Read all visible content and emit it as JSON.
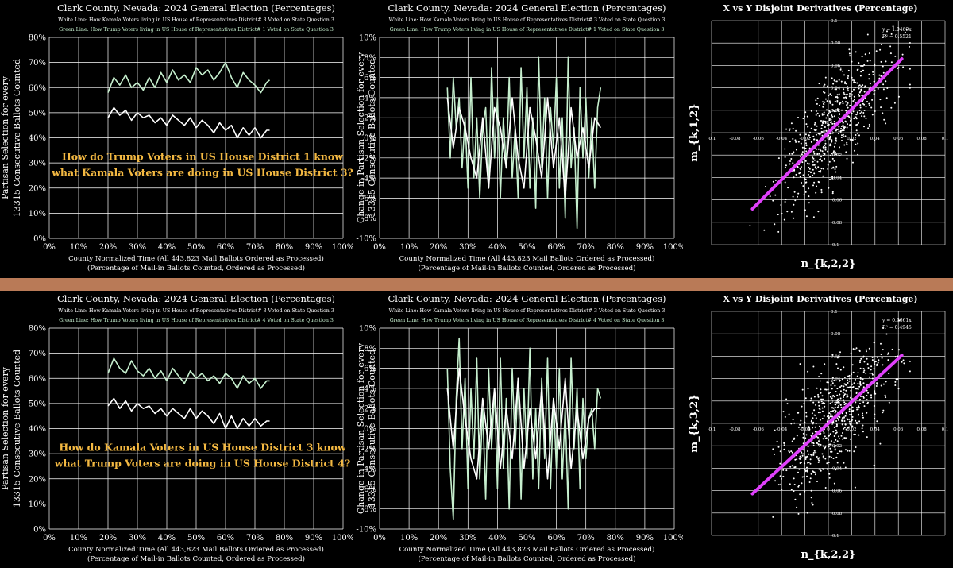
{
  "divider_color": "#b97a57",
  "colors": {
    "white_line": "#ffffff",
    "green_line": "#c6efce",
    "fit_line": "#e040fb",
    "question": "#f4b942",
    "grid": "#ffffff"
  },
  "rows": [
    {
      "time_chart": {
        "title": "Clark County, Nevada: 2024 General Election (Percentages)",
        "legend_white": "White Line: How Kamala Voters living in US House of Representatives District# 3 Voted on State Question 3",
        "legend_green": "Green Line: How Trump Voters living in US House of Representatives District# 1 Voted on State Question 3",
        "ylabel_1": "Partisan Selection for every",
        "ylabel_2": "13315 Consecutive Ballots Counted",
        "xlabel_1": "County Normalized Time (All 443,823 Mail Ballots Ordered as Processed)",
        "xlabel_2": "(Percentage of Mail-in Ballots Counted, Ordered as Processed)",
        "question_1": "How do Trump Voters in US House District 1 know",
        "question_2": "what Kamala Voters are doing in US House District 3?",
        "ylim": [
          0,
          80
        ],
        "xlim": [
          0,
          100
        ],
        "yticks": [
          "0%",
          "10%",
          "20%",
          "30%",
          "40%",
          "50%",
          "60%",
          "70%",
          "80%"
        ],
        "xticks": [
          "0%",
          "10%",
          "20%",
          "30%",
          "40%",
          "50%",
          "60%",
          "70%",
          "80%",
          "90%",
          "100%"
        ],
        "white_series": {
          "x": [
            20,
            22,
            24,
            26,
            28,
            30,
            32,
            34,
            36,
            38,
            40,
            42,
            44,
            46,
            48,
            50,
            52,
            54,
            56,
            58,
            60,
            62,
            64,
            66,
            68,
            70,
            72,
            74,
            75
          ],
          "y": [
            48,
            52,
            49,
            51,
            47,
            50,
            48,
            49,
            46,
            48,
            45,
            49,
            47,
            45,
            48,
            44,
            47,
            45,
            42,
            46,
            43,
            45,
            40,
            44,
            41,
            44,
            40,
            43,
            43
          ]
        },
        "green_series": {
          "x": [
            20,
            22,
            24,
            26,
            28,
            30,
            32,
            34,
            36,
            38,
            40,
            42,
            44,
            46,
            48,
            50,
            52,
            54,
            56,
            58,
            60,
            62,
            64,
            66,
            68,
            70,
            72,
            74,
            75
          ],
          "y": [
            58,
            64,
            61,
            65,
            60,
            62,
            59,
            64,
            60,
            66,
            62,
            67,
            63,
            65,
            62,
            68,
            65,
            67,
            63,
            66,
            70,
            64,
            60,
            66,
            63,
            61,
            58,
            62,
            63
          ]
        }
      },
      "change_chart": {
        "title": "Clark County, Nevada: 2024 General Election (Percentages)",
        "legend_white": "White Line: How Kamala Voters living in US House of Representatives District# 3 Voted on State Question 3",
        "legend_green": "Green Line: How Trump Voters living in US House of Representatives District# 1 Voted on State Question 3",
        "ylabel_1": "Change in Partisan Selection for every",
        "ylabel_2": "13315 Consecutive Ballots Counted",
        "xlabel_1": "County Normalized Time (All 443,823 Mail Ballots Ordered as Processed)",
        "xlabel_2": "(Percentage of Mail-in Ballots Counted, Ordered as Processed)",
        "ylim": [
          -10,
          10
        ],
        "xlim": [
          0,
          100
        ],
        "yticks": [
          "-10%",
          "-8%",
          "-6%",
          "-4%",
          "-2%",
          "0%",
          "2%",
          "4%",
          "6%",
          "8%",
          "10%"
        ],
        "xticks": [
          "0%",
          "10%",
          "20%",
          "30%",
          "40%",
          "50%",
          "60%",
          "70%",
          "80%",
          "90%",
          "100%"
        ],
        "white_series": {
          "x": [
            23,
            25,
            27,
            29,
            31,
            33,
            35,
            37,
            39,
            41,
            43,
            45,
            47,
            49,
            51,
            53,
            55,
            57,
            59,
            61,
            63,
            65,
            67,
            69,
            71,
            73,
            75
          ],
          "y": [
            4,
            -1,
            3,
            1,
            -2,
            -4,
            2,
            -5,
            3,
            1,
            -3,
            4,
            -2,
            -5,
            3,
            0,
            -4,
            4,
            -3,
            2,
            -6,
            3,
            -2,
            1,
            -3,
            2,
            1
          ]
        },
        "green_series": {
          "x": [
            23,
            24,
            25,
            26,
            27,
            28,
            29,
            30,
            31,
            32,
            33,
            34,
            35,
            36,
            37,
            38,
            39,
            40,
            41,
            42,
            43,
            44,
            45,
            46,
            47,
            48,
            49,
            50,
            51,
            52,
            53,
            54,
            55,
            56,
            57,
            58,
            59,
            60,
            61,
            62,
            63,
            64,
            65,
            66,
            67,
            68,
            69,
            70,
            71,
            72,
            73,
            74,
            75
          ],
          "y": [
            5,
            -2,
            6,
            1,
            4,
            -3,
            2,
            -5,
            6,
            -4,
            2,
            -6,
            1,
            3,
            -5,
            7,
            -2,
            4,
            -6,
            2,
            -3,
            6,
            -4,
            1,
            -6,
            7,
            -2,
            5,
            -5,
            2,
            -7,
            8,
            -3,
            4,
            -6,
            3,
            -1,
            6,
            -5,
            2,
            -8,
            8,
            -3,
            1,
            -9,
            5,
            -2,
            4,
            -4,
            2,
            -5,
            3,
            5
          ]
        }
      },
      "scatter": {
        "title": "X vs Y Disjoint Derivatives (Percentage)",
        "xlabel": "n_{k,2,2}",
        "ylabel": "m_{k,1,2}",
        "equation": "y = 1.0469x",
        "r2": "R² = 0.5521",
        "slope": 1.0469,
        "lim": [
          -0.1,
          0.1
        ],
        "ticks_x": [
          "-0.1",
          "-0.08",
          "-0.06",
          "-0.04",
          "-0.02",
          "0",
          "0.02",
          "0.04",
          "0.06",
          "0.08",
          "0.1"
        ],
        "ticks_y": [
          "0.1",
          "0.08",
          "0.06",
          "0.04",
          "0.02",
          "0",
          "-0.02",
          "-0.04",
          "-0.06",
          "-0.08",
          "-0.1"
        ],
        "fit_x_range": [
          -0.065,
          0.063
        ],
        "point_count": 650,
        "noise": 0.022,
        "seed": 7
      }
    },
    {
      "time_chart": {
        "title": "Clark County, Nevada: 2024 General Election (Percentages)",
        "legend_white": "White Line: How Kamala Voters living in US House of Representatives District# 3 Voted on State Question 3",
        "legend_green": "Green Line: How Trump Voters living in US House of Representatives District# 4 Voted on State Question 3",
        "ylabel_1": "Partisan Selection for every",
        "ylabel_2": "13315 Consecutive Ballots Counted",
        "xlabel_1": "County Normalized Time (All 443,823 Mail Ballots Ordered as Processed)",
        "xlabel_2": "(Percentage of Mail-in Ballots Counted, Ordered as Processed)",
        "question_1": "How do Kamala Voters in US House District 3 know",
        "question_2": "what Trump Voters are doing in US House District 4?",
        "ylim": [
          0,
          80
        ],
        "xlim": [
          0,
          100
        ],
        "yticks": [
          "0%",
          "10%",
          "20%",
          "30%",
          "40%",
          "50%",
          "60%",
          "70%",
          "80%"
        ],
        "xticks": [
          "0%",
          "10%",
          "20%",
          "30%",
          "40%",
          "50%",
          "60%",
          "70%",
          "80%",
          "90%",
          "100%"
        ],
        "white_series": {
          "x": [
            20,
            22,
            24,
            26,
            28,
            30,
            32,
            34,
            36,
            38,
            40,
            42,
            44,
            46,
            48,
            50,
            52,
            54,
            56,
            58,
            60,
            62,
            64,
            66,
            68,
            70,
            72,
            74,
            75
          ],
          "y": [
            49,
            52,
            48,
            51,
            47,
            50,
            48,
            49,
            46,
            48,
            45,
            48,
            46,
            44,
            48,
            44,
            47,
            45,
            42,
            46,
            40,
            45,
            40,
            44,
            41,
            44,
            41,
            43,
            43
          ]
        },
        "green_series": {
          "x": [
            20,
            22,
            24,
            26,
            28,
            30,
            32,
            34,
            36,
            38,
            40,
            42,
            44,
            46,
            48,
            50,
            52,
            54,
            56,
            58,
            60,
            62,
            64,
            66,
            68,
            70,
            72,
            74,
            75
          ],
          "y": [
            62,
            68,
            64,
            62,
            67,
            63,
            61,
            64,
            60,
            63,
            59,
            64,
            61,
            58,
            63,
            60,
            62,
            59,
            61,
            58,
            62,
            60,
            56,
            61,
            58,
            60,
            56,
            59,
            59
          ]
        }
      },
      "change_chart": {
        "title": "Clark County, Nevada: 2024 General Election (Percentages)",
        "legend_white": "White Line: How Kamala Voters living in US House of Representatives District# 3 Voted on State Question 3",
        "legend_green": "Green Line: How Trump Voters living in US House of Representatives District# 4 Voted on State Question 3",
        "ylabel_1": "Change in Partisan Selection for every",
        "ylabel_2": "13315 Consecutive Ballots Counted",
        "xlabel_1": "County Normalized Time (All 443,823 Mail Ballots Ordered as Processed)",
        "xlabel_2": "(Percentage of Mail-in Ballots Counted, Ordered as Processed)",
        "ylim": [
          -10,
          10
        ],
        "xlim": [
          0,
          100
        ],
        "yticks": [
          "-10%",
          "-8%",
          "-6%",
          "-4%",
          "-2%",
          "0%",
          "2%",
          "4%",
          "6%",
          "8%",
          "10%"
        ],
        "xticks": [
          "0%",
          "10%",
          "20%",
          "30%",
          "40%",
          "50%",
          "60%",
          "70%",
          "80%",
          "90%",
          "100%"
        ],
        "white_series": {
          "x": [
            23,
            25,
            27,
            29,
            31,
            33,
            35,
            37,
            39,
            41,
            43,
            45,
            47,
            49,
            51,
            53,
            55,
            57,
            59,
            61,
            63,
            65,
            67,
            69,
            71,
            73,
            75
          ],
          "y": [
            4,
            -2,
            6,
            1,
            -3,
            -5,
            3,
            -2,
            4,
            -4,
            2,
            -3,
            5,
            -4,
            2,
            -3,
            4,
            -5,
            3,
            -2,
            5,
            -4,
            2,
            -3,
            1,
            2,
            2
          ]
        },
        "green_series": {
          "x": [
            23,
            24,
            25,
            26,
            27,
            28,
            29,
            30,
            31,
            32,
            33,
            34,
            35,
            36,
            37,
            38,
            39,
            40,
            41,
            42,
            43,
            44,
            45,
            46,
            47,
            48,
            49,
            50,
            51,
            52,
            53,
            54,
            55,
            56,
            57,
            58,
            59,
            60,
            61,
            62,
            63,
            64,
            65,
            66,
            67,
            68,
            69,
            70,
            71,
            72,
            73,
            74,
            75
          ],
          "y": [
            6,
            -4,
            -9,
            3,
            9,
            -2,
            5,
            -6,
            4,
            -3,
            7,
            -5,
            2,
            -7,
            6,
            -2,
            4,
            -6,
            7,
            -4,
            3,
            -8,
            6,
            -2,
            5,
            -7,
            4,
            -3,
            8,
            -5,
            2,
            -6,
            5,
            -3,
            7,
            -6,
            3,
            -4,
            6,
            -5,
            2,
            -8,
            7,
            -2,
            4,
            -6,
            3,
            -3,
            1,
            2,
            -2,
            4,
            3
          ]
        }
      },
      "scatter": {
        "title": "X vs Y Disjoint Derivatives (Percentage)",
        "xlabel": "n_{k,2,2}",
        "ylabel": "m_{k,3,2}",
        "equation": "y = 0.9661x",
        "r2": "R² = 0.4945",
        "slope": 0.9661,
        "lim": [
          -0.1,
          0.1
        ],
        "ticks_x": [
          "-0.1",
          "-0.08",
          "-0.06",
          "-0.04",
          "-0.02",
          "0",
          "0.02",
          "0.04",
          "0.06",
          "0.08",
          "0.1"
        ],
        "ticks_y": [
          "0.1",
          "0.08",
          "0.06",
          "0.04",
          "0.02",
          "0",
          "-0.02",
          "-0.04",
          "-0.06",
          "-0.08",
          "-0.1"
        ],
        "fit_x_range": [
          -0.065,
          0.063
        ],
        "point_count": 650,
        "noise": 0.024,
        "seed": 19
      }
    }
  ]
}
